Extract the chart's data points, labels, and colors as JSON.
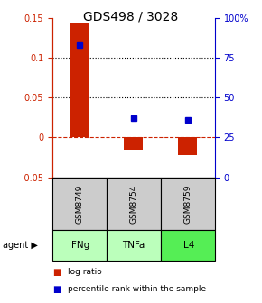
{
  "title": "GDS498 / 3028",
  "samples": [
    "GSM8749",
    "GSM8754",
    "GSM8759"
  ],
  "agents": [
    "IFNg",
    "TNFa",
    "IL4"
  ],
  "log_ratios": [
    0.145,
    -0.015,
    -0.022
  ],
  "percentile_ranks": [
    83,
    37,
    36
  ],
  "ylim_left": [
    -0.05,
    0.15
  ],
  "ylim_right": [
    0,
    100
  ],
  "yticks_left": [
    -0.05,
    0.0,
    0.05,
    0.1,
    0.15
  ],
  "yticks_right": [
    0,
    25,
    50,
    75,
    100
  ],
  "ytick_labels_left": [
    "-0.05",
    "0",
    "0.05",
    "0.1",
    "0.15"
  ],
  "ytick_labels_right": [
    "0",
    "25",
    "50",
    "75",
    "100%"
  ],
  "dotted_lines": [
    0.05,
    0.1
  ],
  "zero_line_color": "#cc2200",
  "bar_color": "#cc2200",
  "square_color": "#0000cc",
  "agent_colors": [
    "#bbffbb",
    "#bbffbb",
    "#55ee55"
  ],
  "sample_box_color": "#cccccc",
  "left_axis_color": "#cc2200",
  "right_axis_color": "#0000cc",
  "bar_width": 0.35,
  "legend_items": [
    "log ratio",
    "percentile rank within the sample"
  ],
  "title_fontsize": 10
}
